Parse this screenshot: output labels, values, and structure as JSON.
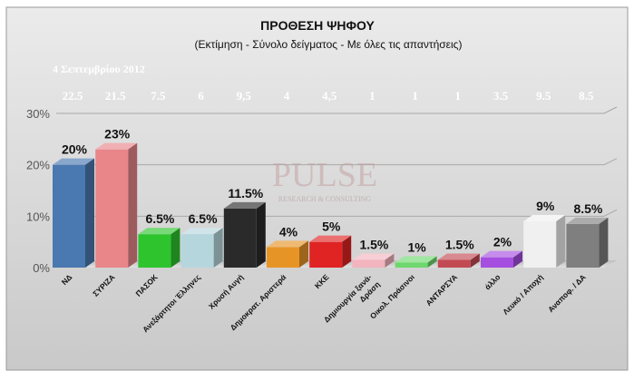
{
  "chart_data": {
    "type": "bar",
    "title": "ΠΡΟΘΕΣΗ ΨΗΦΟΥ",
    "subtitle": "(Εκτίμηση - Σύνολο δείγματος - Με όλες τις απαντήσεις)",
    "date_label": "4 Σεπτεμβρίου 2012",
    "watermark": "PULSE",
    "watermark_sub": "RESEARCH & CONSULTING",
    "categories": [
      "ΝΔ",
      "ΣΥΡΙΖΑ",
      "ΠΑΣΟΚ",
      "Ανεξάρτητοι Έλληνες",
      "Χρυσή Αυγή",
      "Δημοκρατ. Αριστερά",
      "ΚΚΕ",
      "Δημιουργία ξανά-Δράση",
      "Οικολ. Πράσινοι",
      "ΑΝΤΑΡΣΥΑ",
      "άλλο",
      "Λευκό / Αποχή",
      "Αναποφ. / ΔΑ"
    ],
    "category_lines": [
      [
        "ΝΔ"
      ],
      [
        "ΣΥΡΙΖΑ"
      ],
      [
        "ΠΑΣΟΚ"
      ],
      [
        "Ανεξάρτητοι Έλληνες"
      ],
      [
        "Χρυσή Αυγή"
      ],
      [
        "Δημοκρατ. Αριστερά"
      ],
      [
        "ΚΚΕ"
      ],
      [
        "Δημιουργία ξανά-",
        "Δράση"
      ],
      [
        "Οικολ. Πράσινοι"
      ],
      [
        "ΑΝΤΑΡΣΥΑ"
      ],
      [
        "άλλο"
      ],
      [
        "Λευκό / Αποχή"
      ],
      [
        "Αναποφ. / ΔΑ"
      ]
    ],
    "values": [
      20,
      23,
      6.5,
      6.5,
      11.5,
      4,
      5,
      1.5,
      1,
      1.5,
      2,
      9,
      8.5
    ],
    "value_labels": [
      "20%",
      "23%",
      "6.5%",
      "6.5%",
      "11.5%",
      "4%",
      "5%",
      "1.5%",
      "1%",
      "1.5%",
      "2%",
      "9%",
      "8.5%"
    ],
    "top_values": [
      "22.5",
      "21.5",
      "7.5",
      "6",
      "9,5",
      "4",
      "4,5",
      "1",
      "1",
      "1",
      "3.5",
      "9.5",
      "8.5"
    ],
    "colors": [
      "#4a78b0",
      "#e8868a",
      "#2ec42e",
      "#b6d6dd",
      "#2a2a2a",
      "#e79427",
      "#e02424",
      "#f2b4be",
      "#6ed86e",
      "#c24a52",
      "#a54ee0",
      "#f0f0f0",
      "#7f7f7f"
    ],
    "y_ticks": [
      "0%",
      "10%",
      "20%",
      "30%"
    ],
    "ylim": [
      0,
      30
    ],
    "grid": true
  }
}
